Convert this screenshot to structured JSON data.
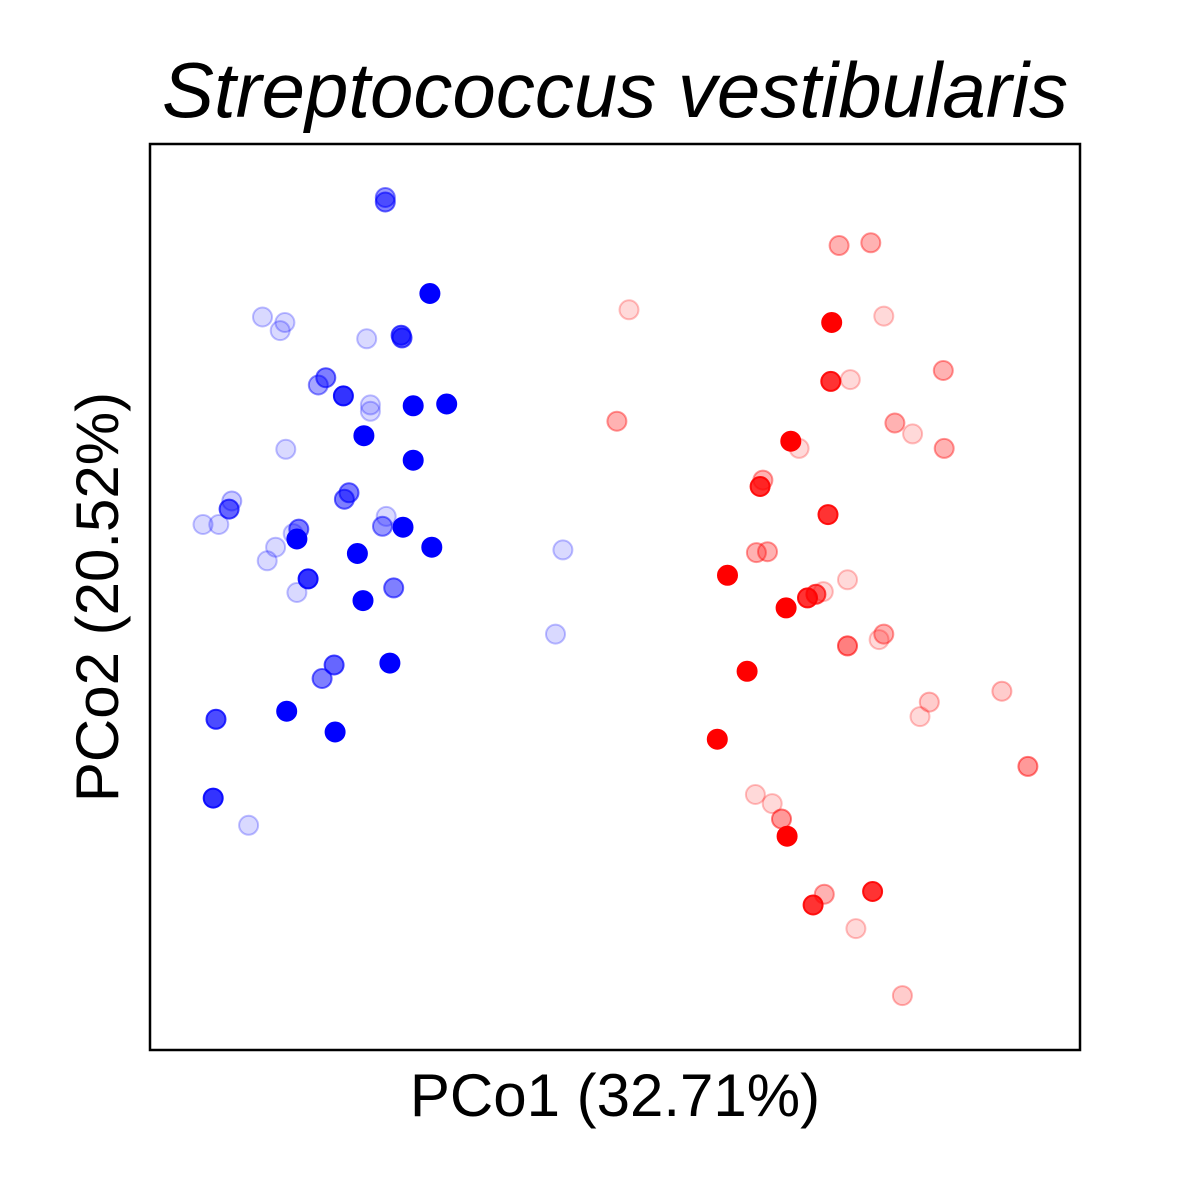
{
  "chart_data": {
    "type": "scatter",
    "title": "Streptococcus vestibularis",
    "xlabel": "PCo1 (32.71%)",
    "ylabel": "PCo2 (20.52%)",
    "xticks": "none",
    "yticks": "none",
    "grid": false,
    "legend": "none",
    "xlim": [
      0,
      1000
    ],
    "ylim": [
      0,
      1000
    ],
    "series": [
      {
        "color": "#0000ff",
        "points": [
          {
            "x": 253,
            "y": 941,
            "a": 0.4
          },
          {
            "x": 253,
            "y": 936,
            "a": 0.5
          },
          {
            "x": 301,
            "y": 835,
            "a": 1.0
          },
          {
            "x": 121,
            "y": 809,
            "a": 0.15
          },
          {
            "x": 145,
            "y": 803,
            "a": 0.15
          },
          {
            "x": 140,
            "y": 794,
            "a": 0.15
          },
          {
            "x": 270,
            "y": 789,
            "a": 0.6
          },
          {
            "x": 271,
            "y": 786,
            "a": 0.6
          },
          {
            "x": 233,
            "y": 785,
            "a": 0.15
          },
          {
            "x": 189,
            "y": 742,
            "a": 0.5
          },
          {
            "x": 181,
            "y": 734,
            "a": 0.35
          },
          {
            "x": 208,
            "y": 722,
            "a": 0.8
          },
          {
            "x": 237,
            "y": 712,
            "a": 0.15
          },
          {
            "x": 237,
            "y": 705,
            "a": 0.15
          },
          {
            "x": 283,
            "y": 711,
            "a": 1.0
          },
          {
            "x": 319,
            "y": 713,
            "a": 1.0
          },
          {
            "x": 230,
            "y": 678,
            "a": 1.0
          },
          {
            "x": 146,
            "y": 663,
            "a": 0.15
          },
          {
            "x": 283,
            "y": 651,
            "a": 1.0
          },
          {
            "x": 214,
            "y": 615,
            "a": 0.5
          },
          {
            "x": 209,
            "y": 608,
            "a": 0.5
          },
          {
            "x": 88,
            "y": 606,
            "a": 0.2
          },
          {
            "x": 85,
            "y": 597,
            "a": 0.6
          },
          {
            "x": 254,
            "y": 589,
            "a": 0.15
          },
          {
            "x": 74,
            "y": 580,
            "a": 0.15
          },
          {
            "x": 57,
            "y": 580,
            "a": 0.15
          },
          {
            "x": 272,
            "y": 577,
            "a": 1.0
          },
          {
            "x": 250,
            "y": 578,
            "a": 0.4
          },
          {
            "x": 160,
            "y": 575,
            "a": 0.5
          },
          {
            "x": 154,
            "y": 570,
            "a": 0.15
          },
          {
            "x": 158,
            "y": 564,
            "a": 1.0
          },
          {
            "x": 135,
            "y": 555,
            "a": 0.15
          },
          {
            "x": 303,
            "y": 555,
            "a": 1.0
          },
          {
            "x": 223,
            "y": 548,
            "a": 1.0
          },
          {
            "x": 126,
            "y": 540,
            "a": 0.15
          },
          {
            "x": 170,
            "y": 520,
            "a": 0.8
          },
          {
            "x": 262,
            "y": 510,
            "a": 0.5
          },
          {
            "x": 158,
            "y": 505,
            "a": 0.15
          },
          {
            "x": 229,
            "y": 496,
            "a": 1.0
          },
          {
            "x": 444,
            "y": 552,
            "a": 0.15
          },
          {
            "x": 436,
            "y": 459,
            "a": 0.15
          },
          {
            "x": 198,
            "y": 425,
            "a": 0.6
          },
          {
            "x": 185,
            "y": 410,
            "a": 0.5
          },
          {
            "x": 258,
            "y": 427,
            "a": 1.0
          },
          {
            "x": 147,
            "y": 374,
            "a": 1.0
          },
          {
            "x": 71,
            "y": 365,
            "a": 0.7
          },
          {
            "x": 199,
            "y": 351,
            "a": 1.0
          },
          {
            "x": 68,
            "y": 278,
            "a": 0.8
          },
          {
            "x": 106,
            "y": 248,
            "a": 0.15
          }
        ]
      },
      {
        "color": "#ff0000",
        "points": [
          {
            "x": 741,
            "y": 888,
            "a": 0.3
          },
          {
            "x": 775,
            "y": 891,
            "a": 0.3
          },
          {
            "x": 515,
            "y": 817,
            "a": 0.15
          },
          {
            "x": 789,
            "y": 810,
            "a": 0.15
          },
          {
            "x": 733,
            "y": 803,
            "a": 1.0
          },
          {
            "x": 753,
            "y": 740,
            "a": 0.15
          },
          {
            "x": 732,
            "y": 738,
            "a": 0.8
          },
          {
            "x": 853,
            "y": 750,
            "a": 0.3
          },
          {
            "x": 502,
            "y": 694,
            "a": 0.3
          },
          {
            "x": 801,
            "y": 692,
            "a": 0.3
          },
          {
            "x": 820,
            "y": 680,
            "a": 0.15
          },
          {
            "x": 854,
            "y": 664,
            "a": 0.3
          },
          {
            "x": 689,
            "y": 672,
            "a": 1.0
          },
          {
            "x": 698,
            "y": 664,
            "a": 0.15
          },
          {
            "x": 659,
            "y": 629,
            "a": 0.3
          },
          {
            "x": 656,
            "y": 622,
            "a": 0.8
          },
          {
            "x": 729,
            "y": 591,
            "a": 0.8
          },
          {
            "x": 652,
            "y": 549,
            "a": 0.3
          },
          {
            "x": 664,
            "y": 550,
            "a": 0.3
          },
          {
            "x": 621,
            "y": 524,
            "a": 1.0
          },
          {
            "x": 750,
            "y": 519,
            "a": 0.15
          },
          {
            "x": 724,
            "y": 506,
            "a": 0.15
          },
          {
            "x": 716,
            "y": 503,
            "a": 0.6
          },
          {
            "x": 707,
            "y": 499,
            "a": 0.8
          },
          {
            "x": 684,
            "y": 488,
            "a": 1.0
          },
          {
            "x": 789,
            "y": 459,
            "a": 0.3
          },
          {
            "x": 784,
            "y": 453,
            "a": 0.15
          },
          {
            "x": 750,
            "y": 446,
            "a": 0.5
          },
          {
            "x": 642,
            "y": 418,
            "a": 1.0
          },
          {
            "x": 916,
            "y": 396,
            "a": 0.2
          },
          {
            "x": 838,
            "y": 384,
            "a": 0.2
          },
          {
            "x": 828,
            "y": 368,
            "a": 0.15
          },
          {
            "x": 610,
            "y": 343,
            "a": 1.0
          },
          {
            "x": 651,
            "y": 282,
            "a": 0.15
          },
          {
            "x": 669,
            "y": 272,
            "a": 0.15
          },
          {
            "x": 679,
            "y": 255,
            "a": 0.4
          },
          {
            "x": 685,
            "y": 236,
            "a": 1.0
          },
          {
            "x": 944,
            "y": 313,
            "a": 0.4
          },
          {
            "x": 725,
            "y": 172,
            "a": 0.3
          },
          {
            "x": 713,
            "y": 160,
            "a": 0.8
          },
          {
            "x": 777,
            "y": 175,
            "a": 0.8
          },
          {
            "x": 759,
            "y": 134,
            "a": 0.15
          },
          {
            "x": 809,
            "y": 60,
            "a": 0.2
          }
        ]
      }
    ]
  }
}
